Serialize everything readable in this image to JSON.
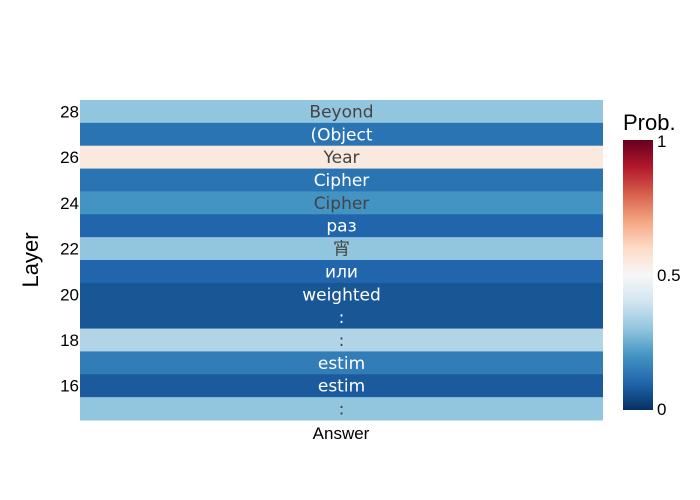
{
  "chart_data": {
    "type": "heatmap",
    "xlabel": "",
    "ylabel": "Layer",
    "x_categories": [
      "Answer"
    ],
    "rows": [
      {
        "layer": 28,
        "token": "Beyond",
        "prob": 0.3
      },
      {
        "layer": 27,
        "token": "(Object",
        "prob": 0.13
      },
      {
        "layer": 26,
        "token": "Year",
        "prob": 0.55
      },
      {
        "layer": 25,
        "token": "Cipher",
        "prob": 0.13
      },
      {
        "layer": 24,
        "token": "Cipher",
        "prob": 0.2
      },
      {
        "layer": 23,
        "token": "раз",
        "prob": 0.1
      },
      {
        "layer": 22,
        "token": "宵",
        "prob": 0.3
      },
      {
        "layer": 21,
        "token": "или",
        "prob": 0.1
      },
      {
        "layer": 20,
        "token": "weighted",
        "prob": 0.07
      },
      {
        "layer": 19,
        "token": ":",
        "prob": 0.07
      },
      {
        "layer": 18,
        "token": ":",
        "prob": 0.35
      },
      {
        "layer": 17,
        "token": "estim",
        "prob": 0.15
      },
      {
        "layer": 16,
        "token": "estim",
        "prob": 0.08
      },
      {
        "layer": 15,
        "token": ":",
        "prob": 0.3
      }
    ],
    "y_tick_labels": [
      "28",
      "26",
      "24",
      "22",
      "20",
      "18",
      "16"
    ],
    "colorbar": {
      "title": "Prob.",
      "range": [
        0,
        1
      ],
      "ticks": [
        "0",
        "0.5",
        "1"
      ],
      "colorscale": "RdBu (reversed: 0 = dark blue, 0.5 = white, 1 = dark red)"
    }
  }
}
